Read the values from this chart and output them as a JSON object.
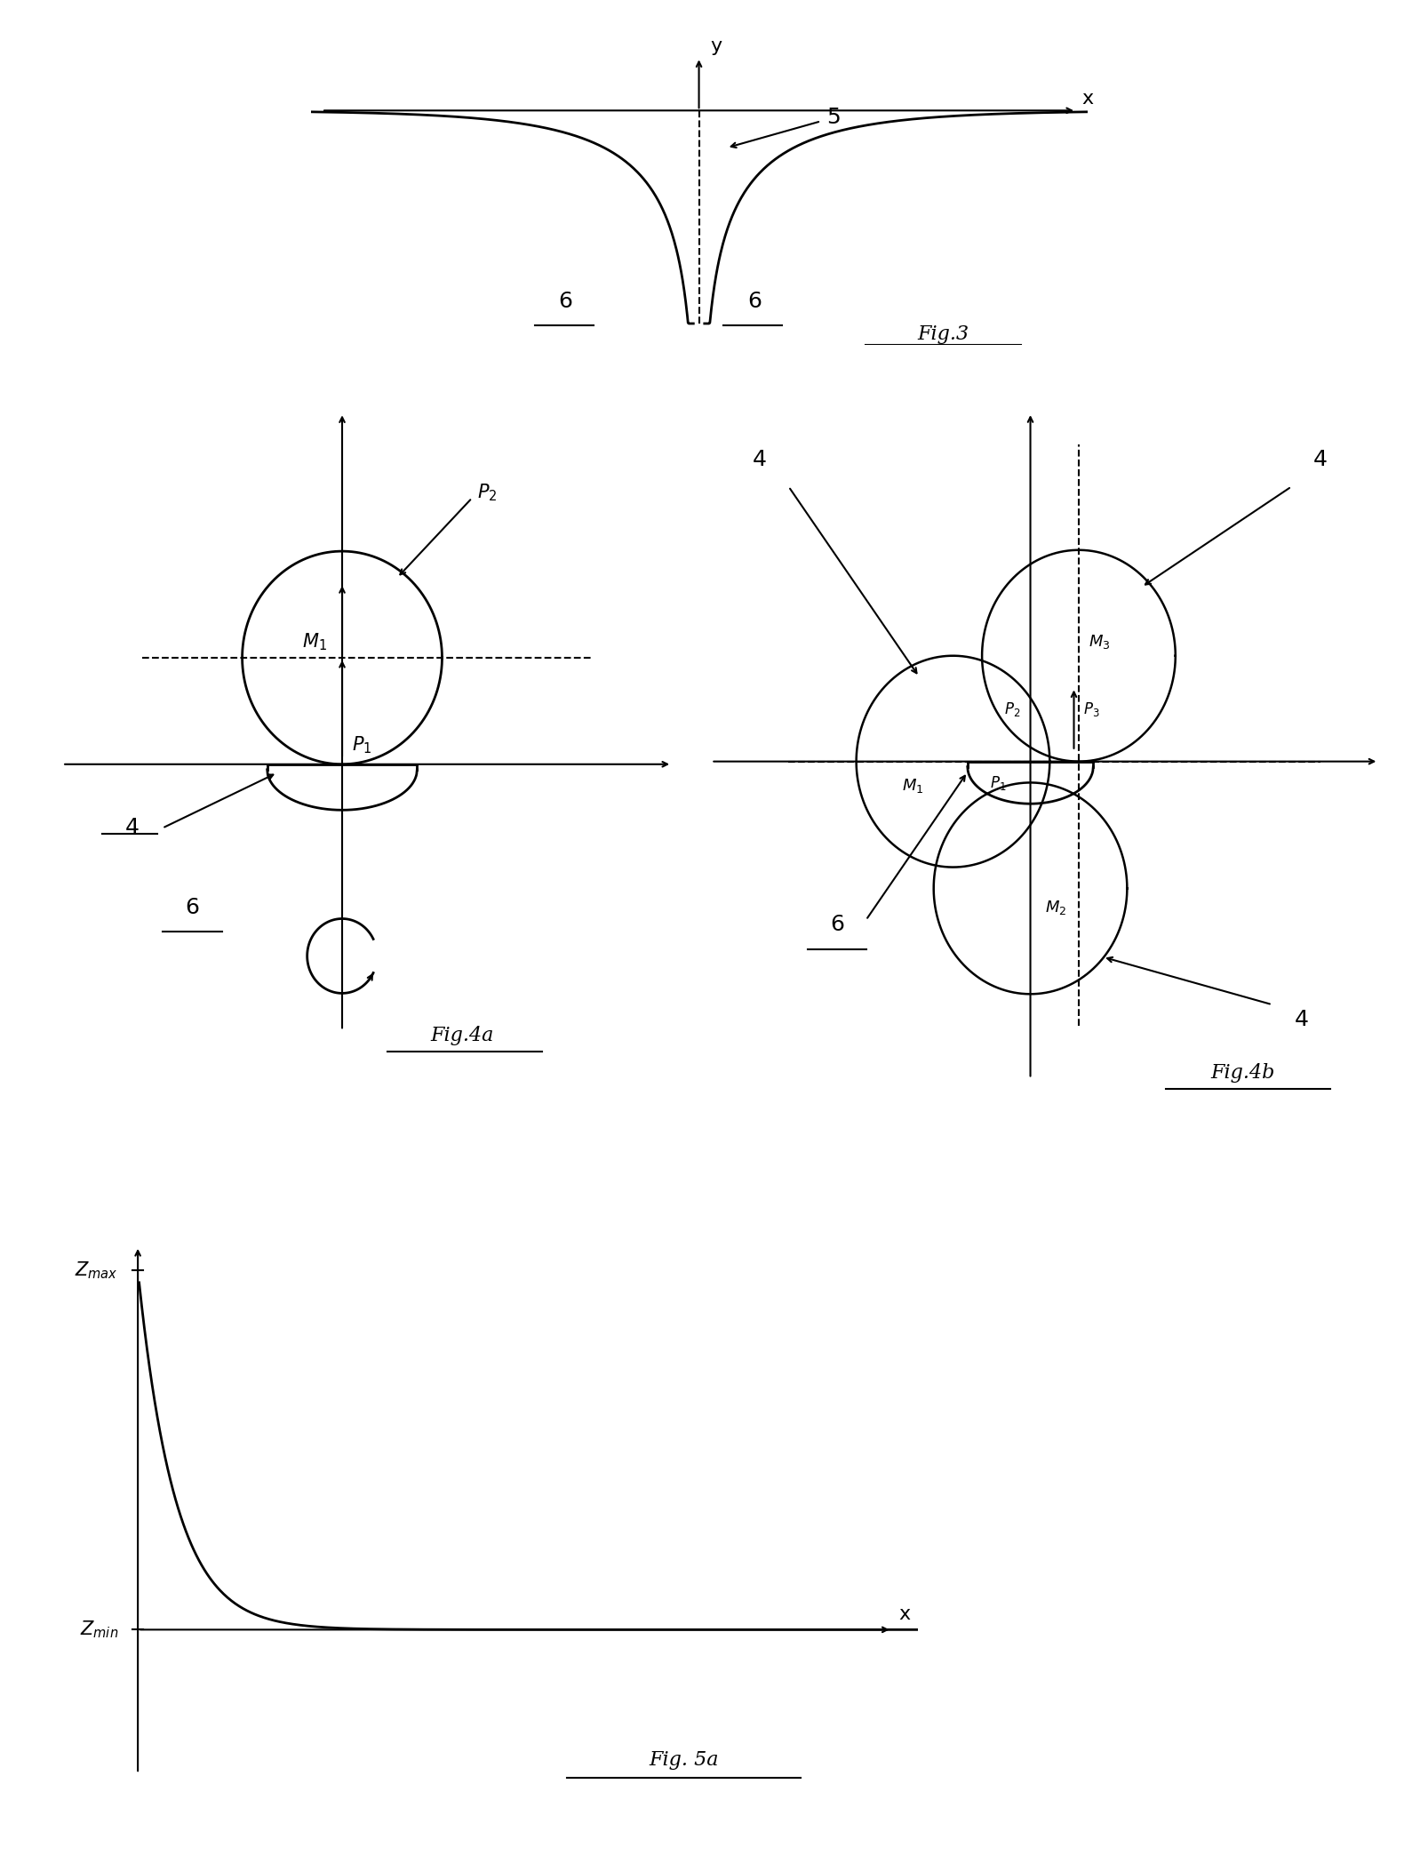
{
  "bg_color": "#ffffff",
  "fig_width": 15.89,
  "fig_height": 20.97,
  "fig3": {
    "title": "Fig.3",
    "label_5": "5",
    "label_6_left": "6",
    "label_6_right": "6",
    "axis_label_x": "x",
    "axis_label_y": "y"
  },
  "fig4a": {
    "title": "Fig.4a",
    "label_4": "4",
    "label_6": "6",
    "label_P1": "$P_1$",
    "label_P2": "$P_2$",
    "label_M1": "$M_1$"
  },
  "fig4b": {
    "title": "Fig.4b",
    "label_4": "4",
    "label_6": "6",
    "label_P1": "$P_1$",
    "label_P2": "$P_2$",
    "label_P3": "$P_3$",
    "label_M1": "$M_1$",
    "label_M2": "$M_2$",
    "label_M3": "$M_3$"
  },
  "fig5a": {
    "title": "Fig. 5a",
    "label_zmax": "$Z_{max}$",
    "label_zmin": "$Z_{min}$",
    "axis_label_x": "x"
  }
}
